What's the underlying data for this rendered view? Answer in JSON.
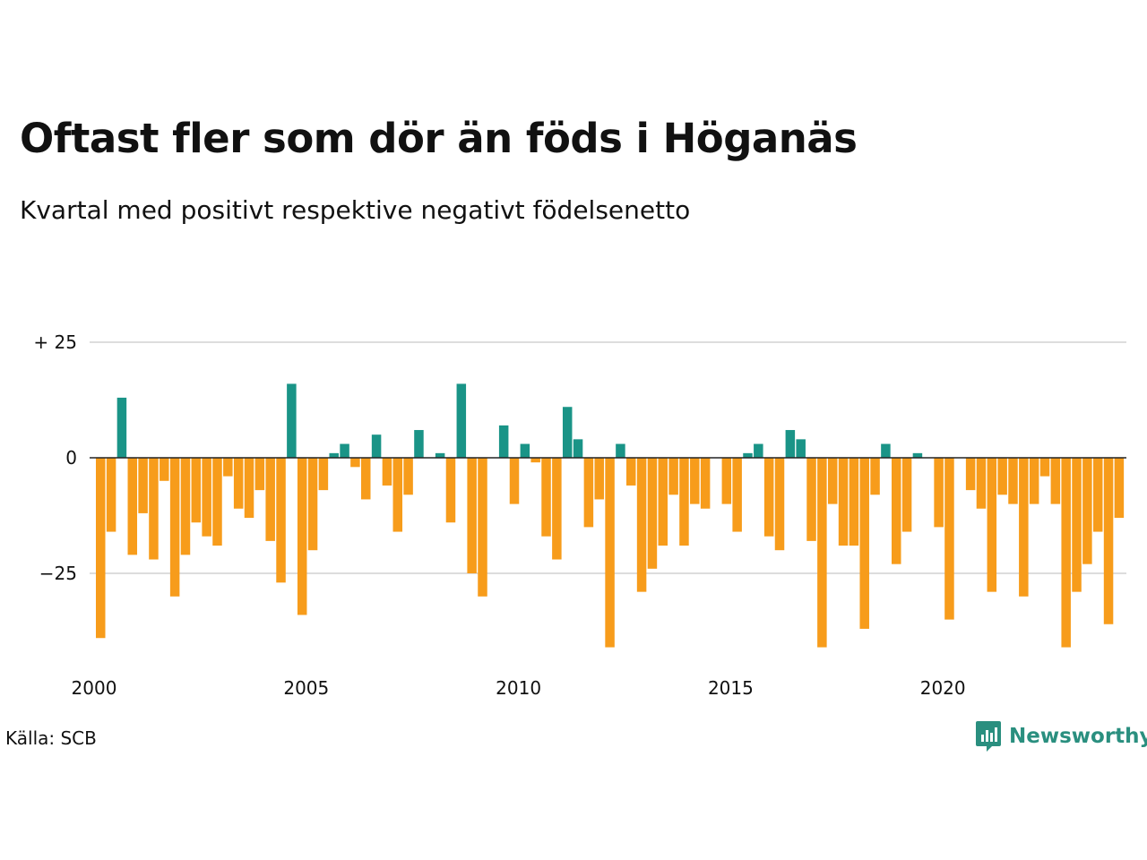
{
  "title": "Oftast fler som dör än föds i Höganäs",
  "subtitle": "Kvartal med positivt respektive negativt födelsenetto",
  "source": "Källa: SCB",
  "logo": {
    "text": "Newsworthy",
    "icon": "newsworthy-chart-icon",
    "color": "#2a8f7f"
  },
  "chart_data": {
    "type": "bar",
    "start_year": 2000,
    "start_quarter": 1,
    "values": [
      -39,
      -16,
      13,
      -21,
      -12,
      -22,
      -5,
      -30,
      -21,
      -14,
      -17,
      -19,
      -4,
      -11,
      -13,
      -7,
      -18,
      -27,
      16,
      -34,
      -20,
      -7,
      1,
      3,
      -2,
      -9,
      5,
      -6,
      -16,
      -8,
      6,
      0,
      1,
      -14,
      16,
      -25,
      -30,
      0,
      7,
      -10,
      3,
      -1,
      -17,
      -22,
      11,
      4,
      -15,
      -9,
      -41,
      3,
      -6,
      -29,
      -24,
      -19,
      -8,
      -19,
      -10,
      -11,
      0,
      -10,
      -16,
      1,
      3,
      -17,
      -20,
      6,
      4,
      -18,
      -41,
      -10,
      -19,
      -19,
      -37,
      -8,
      3,
      -23,
      -16,
      1,
      0,
      -15,
      -35,
      0,
      -7,
      -11,
      -29,
      -8,
      -10,
      -30,
      -10,
      -4,
      -10,
      -41,
      -29,
      -23,
      -16,
      -36,
      -13
    ],
    "colors": {
      "positive": "#1a9487",
      "negative": "#f79c1b"
    },
    "y_ticks": [
      {
        "value": 25,
        "label": "+ 25"
      },
      {
        "value": 0,
        "label": "0"
      },
      {
        "value": -25,
        "label": "−25"
      }
    ],
    "x_ticks": [
      "2000",
      "2005",
      "2010",
      "2015",
      "2020"
    ],
    "ylim": [
      -40,
      25
    ],
    "grid": true
  }
}
